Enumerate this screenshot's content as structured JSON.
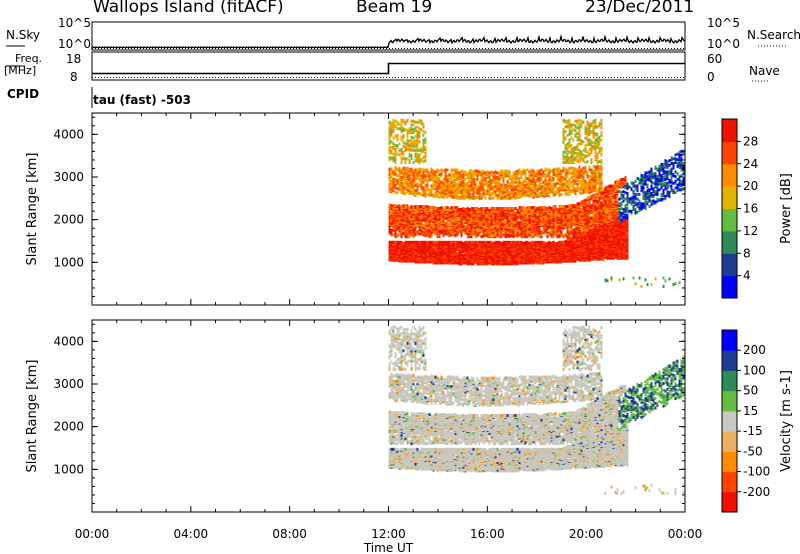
{
  "header": {
    "station": "Wallops Island (fitACF)",
    "beam": "Beam 19",
    "date": "23/Dec/2011"
  },
  "top_panels": {
    "nsky_label": "N.Sky",
    "nsearch_label": "N.Search",
    "nsky_ticks": [
      "10^5",
      "10^0"
    ],
    "freq_label_1": "Freq.",
    "freq_label_2": "[MHz]",
    "freq_ticks": [
      "18",
      "8"
    ],
    "nave_label": "Nave",
    "nave_ticks": [
      "60",
      "0"
    ],
    "cpid_label": "CPID",
    "cpid_text": "tau (fast) -503"
  },
  "colors": {
    "power_scale": [
      "#0000ff",
      "#1e3c96",
      "#2e8b57",
      "#66bb44",
      "#e0b400",
      "#ff8c00",
      "#ff4500",
      "#ee1100"
    ],
    "velocity_scale": [
      "#ee1100",
      "#ff4500",
      "#ff8c00",
      "#e8b060",
      "#c8c8c0",
      "#66bb44",
      "#2e8b57",
      "#1e3c96",
      "#0000ff"
    ],
    "gray": "#c8c8c0"
  },
  "chart_data": [
    {
      "type": "heatmap",
      "name": "power",
      "ylabel": "Slant Range [km]",
      "yticks": [
        "1000",
        "2000",
        "3000",
        "4000"
      ],
      "ylim": [
        0,
        4500
      ],
      "colorbar_label": "Power [dB]",
      "colorbar_ticks": [
        "4",
        "8",
        "12",
        "16",
        "20",
        "24",
        "28"
      ],
      "bands": [
        {
          "range_km": [
            900,
            1400
          ],
          "start": "12:00",
          "end": "21:40",
          "value_db": 28
        },
        {
          "range_km": [
            1600,
            2300
          ],
          "start": "12:00",
          "end": "21:00",
          "value_db": 24
        },
        {
          "range_km": [
            2400,
            3200
          ],
          "start": "12:00",
          "end": "20:30",
          "value_db": 20
        },
        {
          "range_km": [
            3300,
            4200
          ],
          "start": "12:00",
          "end": "20:30",
          "value_db": 16
        },
        {
          "range_km": [
            2200,
            3000
          ],
          "start": "21:30",
          "end": "23:50",
          "value_db": 8
        }
      ]
    },
    {
      "type": "heatmap",
      "name": "velocity",
      "ylabel": "Slant Range [km]",
      "yticks": [
        "1000",
        "2000",
        "3000",
        "4000"
      ],
      "ylim": [
        0,
        4500
      ],
      "colorbar_label": "Velocity [m s-1]",
      "colorbar_ticks": [
        "200",
        "100",
        "50",
        "15",
        "-15",
        "-50",
        "-100",
        "-200"
      ],
      "xlabel": "Time UT",
      "xticks": [
        "00:00",
        "04:00",
        "08:00",
        "12:00",
        "16:00",
        "20:00",
        "00:00"
      ]
    }
  ]
}
